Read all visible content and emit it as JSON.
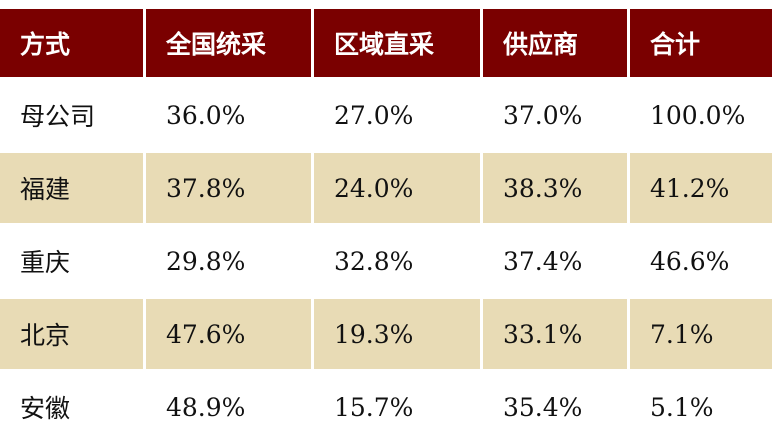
{
  "colors": {
    "header": "#7a0000",
    "alt_row": "#e8dbb5"
  },
  "headers": [
    "方式",
    "全国统采",
    "区域直采",
    "供应商",
    "合计"
  ],
  "rows": [
    [
      "母公司",
      "36.0%",
      "27.0%",
      "37.0%",
      "100.0%"
    ],
    [
      "福建",
      "37.8%",
      "24.0%",
      "38.3%",
      "41.2%"
    ],
    [
      "重庆",
      "29.8%",
      "32.8%",
      "37.4%",
      "46.6%"
    ],
    [
      "北京",
      "47.6%",
      "19.3%",
      "33.1%",
      "7.1%"
    ],
    [
      "安徽",
      "48.9%",
      "15.7%",
      "35.4%",
      "5.1%"
    ]
  ]
}
